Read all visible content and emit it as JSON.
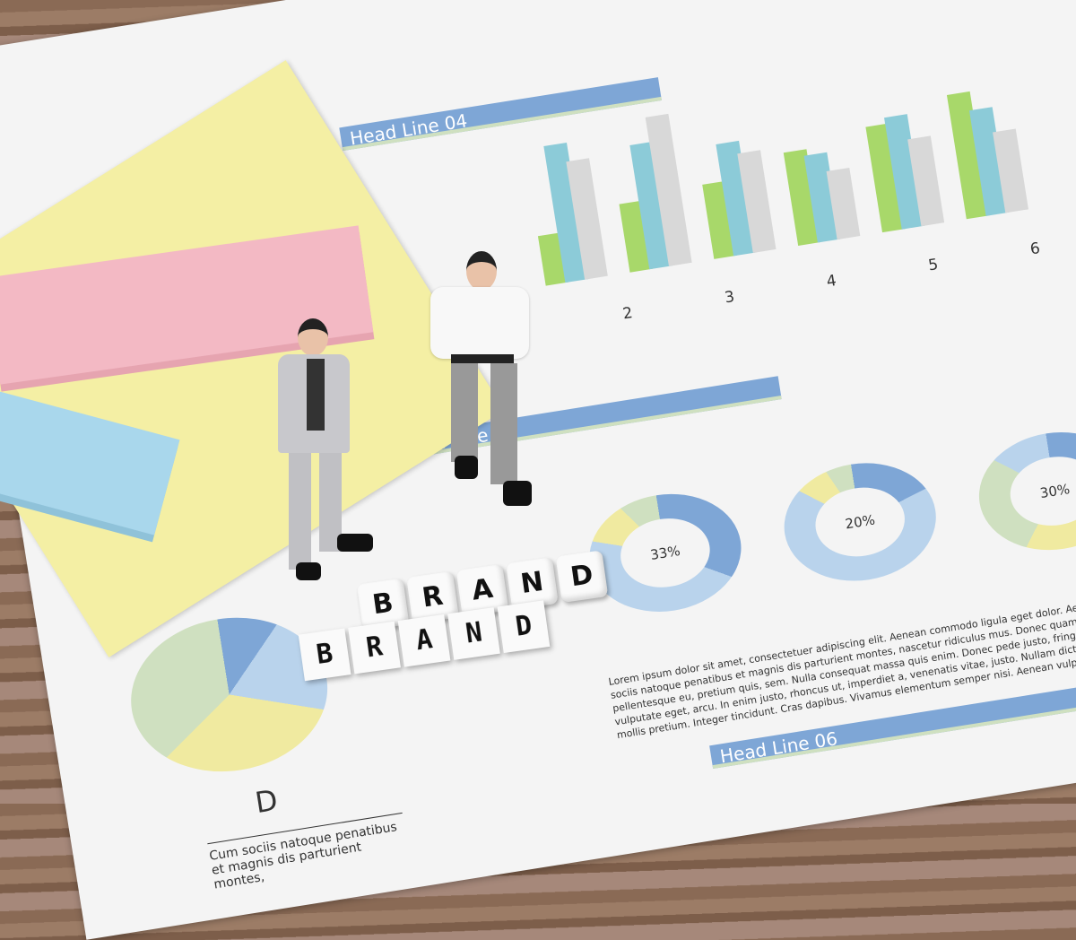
{
  "document": {
    "headlines": [
      "Head Line 04",
      "Head Line 05",
      "Head Line 06"
    ],
    "bar_chart_labels": [
      "2",
      "3",
      "4",
      "5",
      "6"
    ],
    "donuts": [
      {
        "label": "33%",
        "value": 33
      },
      {
        "label": "20%",
        "value": 20
      },
      {
        "label": "30%",
        "value": 30
      }
    ],
    "pie_label": "D",
    "pie_caption": "Cum sociis natoque penatibus et magnis dis parturient montes,",
    "body_text": "Lorem ipsum dolor sit amet, consectetuer adipiscing elit. Aenean commodo ligula eget dolor. Aenean massa. Cum sociis natoque penatibus et magnis dis parturient montes, nascetur ridiculus mus. Donec quam felis, ultricies nec, pellentesque eu, pretium quis, sem. Nulla consequat massa quis enim. Donec pede justo, fringilla vel, aliquet nec, vulputate eget, arcu. In enim justo, rhoncus ut, imperdiet a, venenatis vitae, justo. Nullam dictum felis eu pede mollis pretium. Integer tincidunt. Cras dapibus. Vivamus elementum semper nisi. Aenean vulputate"
  },
  "blocks": {
    "word": "BRAND",
    "letters": [
      "B",
      "R",
      "A",
      "N",
      "D"
    ]
  },
  "colors": {
    "blue": "#7ea6d6",
    "green": "#a8d86a",
    "teal": "#8ccbd8",
    "gray": "#d8d8d8",
    "yellow": "#f0eaa0",
    "pink": "#f3b9c4",
    "sky": "#a9d7ec"
  }
}
